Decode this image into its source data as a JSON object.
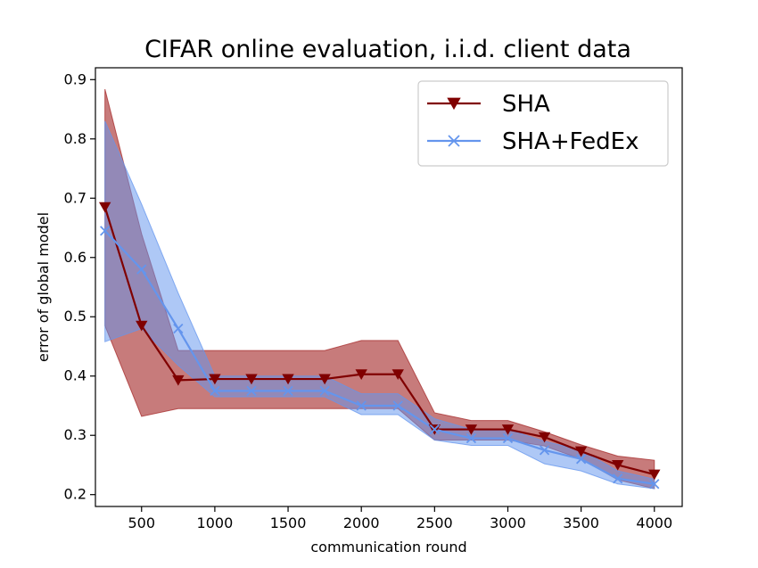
{
  "chart_data": {
    "type": "line",
    "title": "CIFAR online evaluation, i.i.d. client data",
    "xlabel": "communication round",
    "ylabel": "error of global model",
    "xlim": [
      185,
      4190
    ],
    "ylim": [
      0.18,
      0.92
    ],
    "xticks": [
      500,
      1000,
      1500,
      2000,
      2500,
      3000,
      3500,
      4000
    ],
    "yticks": [
      0.2,
      0.3,
      0.4,
      0.5,
      0.6,
      0.7,
      0.8,
      0.9
    ],
    "grid": false,
    "legend_position": "top-right",
    "x": [
      250,
      500,
      750,
      1000,
      1250,
      1500,
      1750,
      2000,
      2250,
      2500,
      2750,
      3000,
      3250,
      3500,
      3750,
      4000
    ],
    "series": [
      {
        "name": "SHA",
        "color": "#800000",
        "band_color": "#a52a2a",
        "marker": "triangle-down",
        "values": [
          0.685,
          0.485,
          0.393,
          0.395,
          0.395,
          0.395,
          0.395,
          0.403,
          0.403,
          0.31,
          0.31,
          0.31,
          0.297,
          0.273,
          0.25,
          0.234
        ],
        "lower": [
          0.485,
          0.332,
          0.345,
          0.345,
          0.345,
          0.345,
          0.345,
          0.345,
          0.345,
          0.292,
          0.292,
          0.292,
          0.282,
          0.26,
          0.225,
          0.21
        ],
        "upper": [
          0.884,
          0.64,
          0.443,
          0.443,
          0.443,
          0.443,
          0.443,
          0.46,
          0.46,
          0.338,
          0.325,
          0.325,
          0.306,
          0.284,
          0.265,
          0.258
        ]
      },
      {
        "name": "SHA+FedEx",
        "color": "#6495ed",
        "band_color": "#6495ed",
        "marker": "x",
        "values": [
          0.645,
          0.58,
          0.48,
          0.375,
          0.375,
          0.375,
          0.375,
          0.35,
          0.35,
          0.31,
          0.295,
          0.295,
          0.275,
          0.26,
          0.227,
          0.218
        ],
        "lower": [
          0.458,
          0.48,
          0.418,
          0.365,
          0.365,
          0.365,
          0.365,
          0.335,
          0.335,
          0.292,
          0.283,
          0.283,
          0.252,
          0.24,
          0.218,
          0.21
        ],
        "upper": [
          0.83,
          0.69,
          0.54,
          0.4,
          0.4,
          0.4,
          0.4,
          0.37,
          0.37,
          0.328,
          0.31,
          0.31,
          0.29,
          0.275,
          0.24,
          0.226
        ]
      }
    ]
  }
}
